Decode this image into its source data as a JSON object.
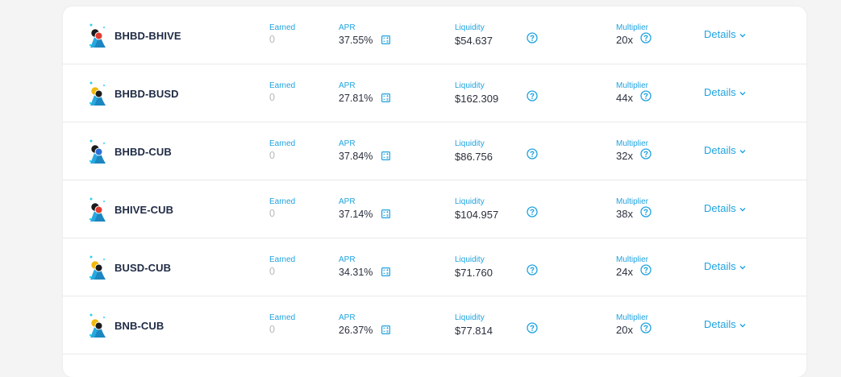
{
  "labels": {
    "earned": "Earned",
    "apr": "APR",
    "liquidity": "Liquidity",
    "multiplier": "Multiplier",
    "details": "Details"
  },
  "colors": {
    "accent": "#1fa3e0",
    "text_dark": "#1f2a44",
    "muted": "#b8b8bd"
  },
  "icons": {
    "apr": "calculator-icon",
    "help": "question-circle-icon",
    "details": "chevron-down-icon",
    "pair": "token-pair-icon"
  },
  "farms": [
    {
      "name": "BHBD-BHIVE",
      "earned": "0",
      "apr": "37.55%",
      "liquidity": "$54.637",
      "multiplier": "20x",
      "coin_a": "#1b1b1b",
      "coin_b": "#e23b2f"
    },
    {
      "name": "BHBD-BUSD",
      "earned": "0",
      "apr": "27.81%",
      "liquidity": "$162.309",
      "multiplier": "44x",
      "coin_a": "#f0b90b",
      "coin_b": "#1b1b1b"
    },
    {
      "name": "BHBD-CUB",
      "earned": "0",
      "apr": "37.84%",
      "liquidity": "$86.756",
      "multiplier": "32x",
      "coin_a": "#1b1b1b",
      "coin_b": "#2b6fd6"
    },
    {
      "name": "BHIVE-CUB",
      "earned": "0",
      "apr": "37.14%",
      "liquidity": "$104.957",
      "multiplier": "38x",
      "coin_a": "#1b1b1b",
      "coin_b": "#e23b2f"
    },
    {
      "name": "BUSD-CUB",
      "earned": "0",
      "apr": "34.31%",
      "liquidity": "$71.760",
      "multiplier": "24x",
      "coin_a": "#f0b90b",
      "coin_b": "#1b1b1b"
    },
    {
      "name": "BNB-CUB",
      "earned": "0",
      "apr": "26.37%",
      "liquidity": "$77.814",
      "multiplier": "20x",
      "coin_a": "#f0b90b",
      "coin_b": "#1b1b1b"
    }
  ]
}
